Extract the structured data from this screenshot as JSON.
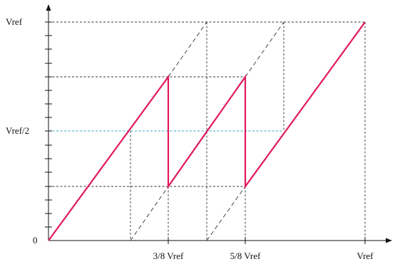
{
  "y_labels": {
    "top": "Vref",
    "mid": "Vref/2",
    "zero": "0"
  },
  "x_labels": {
    "three_eighths": "3/8 Vref",
    "five_eighths": "5/8 Vref",
    "full": "Vref"
  },
  "colors": {
    "transfer_curve": "#e0195a",
    "guide_lines": "#333333",
    "midline": "#2aa8c8",
    "axes": "#111111"
  }
}
